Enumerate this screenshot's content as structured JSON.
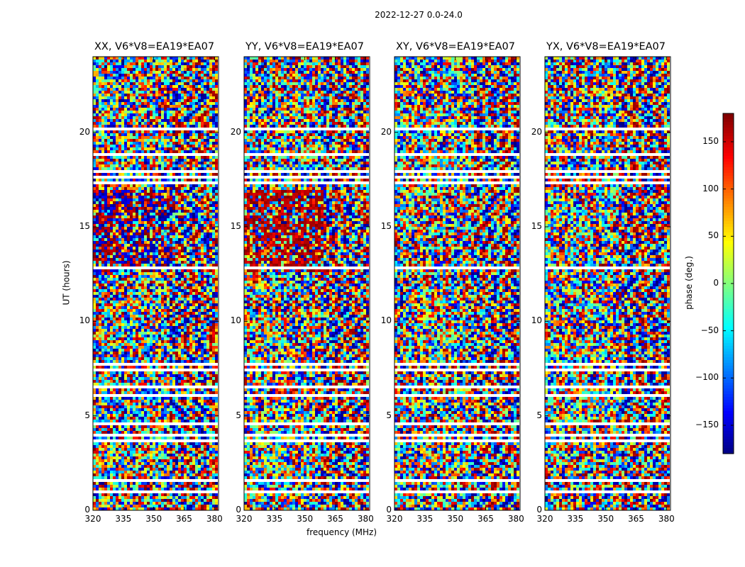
{
  "chart_data": {
    "type": "heatmap",
    "title": "2022-12-27 0.0-24.0",
    "xlabel": "frequency (MHz)",
    "ylabel": "UT (hours)",
    "xlim": [
      320,
      382
    ],
    "ylim": [
      0,
      24
    ],
    "xticks": [
      320,
      335,
      350,
      365,
      380
    ],
    "yticks": [
      0,
      5,
      10,
      15,
      20
    ],
    "panels": [
      {
        "title": "XX, V6*V8=EA19*EA07"
      },
      {
        "title": "YY, V6*V8=EA19*EA07"
      },
      {
        "title": "XY, V6*V8=EA19*EA07"
      },
      {
        "title": "YX, V6*V8=EA19*EA07"
      }
    ],
    "colorbar": {
      "label": "phase (deg.)",
      "min": -180,
      "max": 180,
      "ticks": [
        -150,
        -100,
        -50,
        0,
        50,
        100,
        150
      ],
      "colormap": [
        "#00007f",
        "#0000ff",
        "#0080ff",
        "#00ffff",
        "#80ff80",
        "#ffff00",
        "#ff8000",
        "#ff0000",
        "#7f0000"
      ]
    },
    "flagged_ut_ranges_hours": [
      [
        0.9,
        1.0
      ],
      [
        1.5,
        1.6
      ],
      [
        3.6,
        3.7
      ],
      [
        3.9,
        4.1
      ],
      [
        4.5,
        4.6
      ],
      [
        5.2,
        5.3
      ],
      [
        6.0,
        6.2
      ],
      [
        6.4,
        6.6
      ],
      [
        7.4,
        7.5
      ],
      [
        7.7,
        7.8
      ],
      [
        12.8,
        12.9
      ],
      [
        17.2,
        17.4
      ],
      [
        17.6,
        17.7
      ],
      [
        17.8,
        18.0
      ],
      [
        18.8,
        18.9
      ],
      [
        20.1,
        20.2
      ]
    ]
  }
}
